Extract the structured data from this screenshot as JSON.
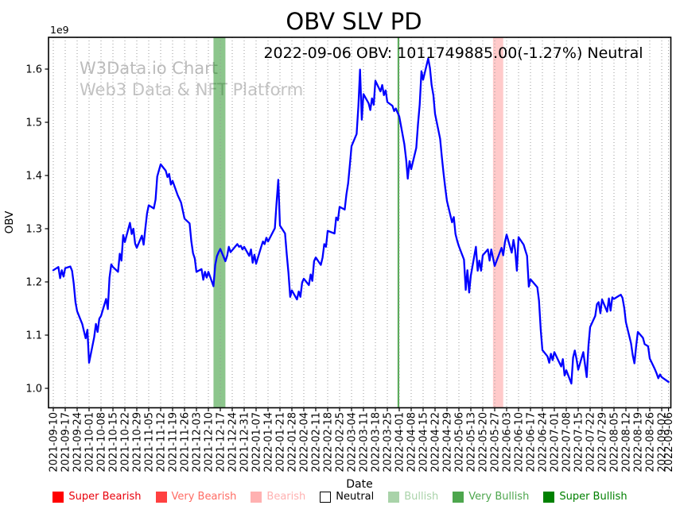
{
  "title": "OBV SLV PD",
  "subtitle": "2022-09-06 OBV: 1011749885.00(-1.27%) Neutral",
  "header": {
    "date": "2022-09-06",
    "obv_value": "1011749885.00",
    "change_pct": "-1.27%",
    "signal": "Neutral"
  },
  "watermark": {
    "line1": "W3Data.io Chart",
    "line2": "Web3 Data & NFT Platform",
    "color": "#bcbcbc"
  },
  "axes": {
    "ylabel": "OBV",
    "xlabel": "Date",
    "y_multiplier": "1e9",
    "yticks": [
      1.0,
      1.1,
      1.2,
      1.3,
      1.4,
      1.5,
      1.6
    ],
    "ylim": [
      0.963,
      1.66
    ],
    "grid": "vertical-dotted",
    "xtick_labels": [
      "2021-09-10",
      "2021-09-17",
      "2021-09-24",
      "2021-10-01",
      "2021-10-08",
      "2021-10-15",
      "2021-10-22",
      "2021-10-29",
      "2021-11-05",
      "2021-11-12",
      "2021-11-19",
      "2021-11-26",
      "2021-12-03",
      "2021-12-10",
      "2021-12-17",
      "2021-12-24",
      "2021-12-31",
      "2022-01-07",
      "2022-01-14",
      "2022-01-21",
      "2022-01-28",
      "2022-02-04",
      "2022-02-11",
      "2022-02-18",
      "2022-02-25",
      "2022-03-04",
      "2022-03-11",
      "2022-03-18",
      "2022-03-25",
      "2022-04-01",
      "2022-04-08",
      "2022-04-15",
      "2022-04-22",
      "2022-04-29",
      "2022-05-06",
      "2022-05-13",
      "2022-05-20",
      "2022-05-27",
      "2022-06-03",
      "2022-06-10",
      "2022-06-17",
      "2022-06-24",
      "2022-07-01",
      "2022-07-08",
      "2022-07-15",
      "2022-07-22",
      "2022-07-29",
      "2022-08-05",
      "2022-08-12",
      "2022-08-19",
      "2022-08-26",
      "2022-09-02",
      "2022-09-06"
    ]
  },
  "legend": {
    "position": "bottom-center",
    "items": [
      {
        "label": "Super Bearish",
        "swatch": "#ff0000",
        "edge": "#ff0000",
        "text_color": "#e8000b"
      },
      {
        "label": "Very Bearish",
        "swatch": "#ff4040",
        "edge": "#ff4040",
        "text_color": "#ff6b63"
      },
      {
        "label": "Bearish",
        "swatch": "#ffb1b1",
        "edge": "#ffb1b1",
        "text_color": "#ffb1b1"
      },
      {
        "label": "Neutral",
        "swatch": "#ffffff",
        "edge": "#000000",
        "text_color": "#000000"
      },
      {
        "label": "Bullish",
        "swatch": "#a9d3a9",
        "edge": "#a9d3a9",
        "text_color": "#a9d3a9"
      },
      {
        "label": "Very Bullish",
        "swatch": "#4da64d",
        "edge": "#4da64d",
        "text_color": "#4da64d"
      },
      {
        "label": "Super Bullish",
        "swatch": "#008000",
        "edge": "#008000",
        "text_color": "#008000"
      }
    ]
  },
  "chart_data": {
    "type": "line",
    "title": "OBV SLV PD",
    "xlabel": "Date",
    "ylabel": "OBV",
    "line_color": "#0000ff",
    "line_width": 2.3,
    "x_range": [
      "2021-09-10",
      "2022-09-06"
    ],
    "regions": [
      {
        "name": "very-bullish-band",
        "start": "2021-12-13",
        "end": "2021-12-20",
        "color": "rgba(0,128,0,0.45)"
      },
      {
        "name": "very-bullish-line",
        "start": "2022-03-31",
        "end": "2022-04-01",
        "color": "rgba(0,128,0,0.65)"
      },
      {
        "name": "bearish-band",
        "start": "2022-05-26",
        "end": "2022-06-01",
        "color": "rgba(255,80,80,0.30)"
      }
    ],
    "points": [
      [
        "2021-09-10",
        1.222
      ],
      [
        "2021-09-13",
        1.228
      ],
      [
        "2021-09-14",
        1.207
      ],
      [
        "2021-09-15",
        1.222
      ],
      [
        "2021-09-16",
        1.21
      ],
      [
        "2021-09-17",
        1.226
      ],
      [
        "2021-09-20",
        1.229
      ],
      [
        "2021-09-21",
        1.221
      ],
      [
        "2021-09-22",
        1.197
      ],
      [
        "2021-09-23",
        1.162
      ],
      [
        "2021-09-24",
        1.145
      ],
      [
        "2021-09-27",
        1.121
      ],
      [
        "2021-09-28",
        1.107
      ],
      [
        "2021-09-29",
        1.094
      ],
      [
        "2021-09-30",
        1.11
      ],
      [
        "2021-10-01",
        1.048
      ],
      [
        "2021-10-04",
        1.096
      ],
      [
        "2021-10-05",
        1.121
      ],
      [
        "2021-10-06",
        1.106
      ],
      [
        "2021-10-07",
        1.131
      ],
      [
        "2021-10-08",
        1.136
      ],
      [
        "2021-10-11",
        1.168
      ],
      [
        "2021-10-12",
        1.149
      ],
      [
        "2021-10-13",
        1.208
      ],
      [
        "2021-10-14",
        1.233
      ],
      [
        "2021-10-15",
        1.228
      ],
      [
        "2021-10-18",
        1.219
      ],
      [
        "2021-10-19",
        1.253
      ],
      [
        "2021-10-20",
        1.24
      ],
      [
        "2021-10-21",
        1.288
      ],
      [
        "2021-10-22",
        1.275
      ],
      [
        "2021-10-25",
        1.311
      ],
      [
        "2021-10-26",
        1.29
      ],
      [
        "2021-10-27",
        1.3
      ],
      [
        "2021-10-28",
        1.272
      ],
      [
        "2021-10-29",
        1.264
      ],
      [
        "2021-11-01",
        1.287
      ],
      [
        "2021-11-02",
        1.27
      ],
      [
        "2021-11-03",
        1.3
      ],
      [
        "2021-11-04",
        1.329
      ],
      [
        "2021-11-05",
        1.344
      ],
      [
        "2021-11-08",
        1.338
      ],
      [
        "2021-11-09",
        1.355
      ],
      [
        "2021-11-10",
        1.398
      ],
      [
        "2021-11-11",
        1.41
      ],
      [
        "2021-11-12",
        1.421
      ],
      [
        "2021-11-15",
        1.409
      ],
      [
        "2021-11-16",
        1.397
      ],
      [
        "2021-11-17",
        1.403
      ],
      [
        "2021-11-18",
        1.383
      ],
      [
        "2021-11-19",
        1.39
      ],
      [
        "2021-11-22",
        1.363
      ],
      [
        "2021-11-23",
        1.356
      ],
      [
        "2021-11-24",
        1.349
      ],
      [
        "2021-11-26",
        1.319
      ],
      [
        "2021-11-29",
        1.31
      ],
      [
        "2021-11-30",
        1.276
      ],
      [
        "2021-12-01",
        1.254
      ],
      [
        "2021-12-02",
        1.244
      ],
      [
        "2021-12-03",
        1.219
      ],
      [
        "2021-12-06",
        1.224
      ],
      [
        "2021-12-07",
        1.204
      ],
      [
        "2021-12-08",
        1.219
      ],
      [
        "2021-12-09",
        1.208
      ],
      [
        "2021-12-10",
        1.219
      ],
      [
        "2021-12-13",
        1.192
      ],
      [
        "2021-12-14",
        1.232
      ],
      [
        "2021-12-15",
        1.248
      ],
      [
        "2021-12-16",
        1.256
      ],
      [
        "2021-12-17",
        1.262
      ],
      [
        "2021-12-20",
        1.239
      ],
      [
        "2021-12-21",
        1.249
      ],
      [
        "2021-12-22",
        1.266
      ],
      [
        "2021-12-23",
        1.256
      ],
      [
        "2021-12-27",
        1.271
      ],
      [
        "2021-12-28",
        1.266
      ],
      [
        "2021-12-29",
        1.268
      ],
      [
        "2021-12-30",
        1.261
      ],
      [
        "2021-12-31",
        1.266
      ],
      [
        "2022-01-03",
        1.249
      ],
      [
        "2022-01-04",
        1.261
      ],
      [
        "2022-01-05",
        1.236
      ],
      [
        "2022-01-06",
        1.251
      ],
      [
        "2022-01-07",
        1.234
      ],
      [
        "2022-01-10",
        1.266
      ],
      [
        "2022-01-11",
        1.276
      ],
      [
        "2022-01-12",
        1.271
      ],
      [
        "2022-01-13",
        1.283
      ],
      [
        "2022-01-14",
        1.276
      ],
      [
        "2022-01-18",
        1.301
      ],
      [
        "2022-01-19",
        1.348
      ],
      [
        "2022-01-20",
        1.392
      ],
      [
        "2022-01-21",
        1.306
      ],
      [
        "2022-01-24",
        1.291
      ],
      [
        "2022-01-25",
        1.251
      ],
      [
        "2022-01-26",
        1.217
      ],
      [
        "2022-01-27",
        1.172
      ],
      [
        "2022-01-28",
        1.184
      ],
      [
        "2022-01-31",
        1.167
      ],
      [
        "2022-02-01",
        1.182
      ],
      [
        "2022-02-02",
        1.172
      ],
      [
        "2022-02-03",
        1.199
      ],
      [
        "2022-02-04",
        1.206
      ],
      [
        "2022-02-07",
        1.194
      ],
      [
        "2022-02-08",
        1.214
      ],
      [
        "2022-02-09",
        1.202
      ],
      [
        "2022-02-10",
        1.239
      ],
      [
        "2022-02-11",
        1.246
      ],
      [
        "2022-02-14",
        1.232
      ],
      [
        "2022-02-15",
        1.246
      ],
      [
        "2022-02-16",
        1.271
      ],
      [
        "2022-02-17",
        1.266
      ],
      [
        "2022-02-18",
        1.296
      ],
      [
        "2022-02-22",
        1.291
      ],
      [
        "2022-02-23",
        1.321
      ],
      [
        "2022-02-24",
        1.316
      ],
      [
        "2022-02-25",
        1.341
      ],
      [
        "2022-02-28",
        1.336
      ],
      [
        "2022-03-01",
        1.365
      ],
      [
        "2022-03-02",
        1.385
      ],
      [
        "2022-03-03",
        1.42
      ],
      [
        "2022-03-04",
        1.455
      ],
      [
        "2022-03-07",
        1.478
      ],
      [
        "2022-03-08",
        1.53
      ],
      [
        "2022-03-09",
        1.599
      ],
      [
        "2022-03-10",
        1.505
      ],
      [
        "2022-03-11",
        1.553
      ],
      [
        "2022-03-14",
        1.536
      ],
      [
        "2022-03-15",
        1.523
      ],
      [
        "2022-03-16",
        1.545
      ],
      [
        "2022-03-17",
        1.533
      ],
      [
        "2022-03-18",
        1.578
      ],
      [
        "2022-03-21",
        1.558
      ],
      [
        "2022-03-22",
        1.57
      ],
      [
        "2022-03-23",
        1.551
      ],
      [
        "2022-03-24",
        1.56
      ],
      [
        "2022-03-25",
        1.538
      ],
      [
        "2022-03-28",
        1.531
      ],
      [
        "2022-03-29",
        1.521
      ],
      [
        "2022-03-30",
        1.526
      ],
      [
        "2022-03-31",
        1.518
      ],
      [
        "2022-04-01",
        1.511
      ],
      [
        "2022-04-04",
        1.459
      ],
      [
        "2022-04-05",
        1.431
      ],
      [
        "2022-04-06",
        1.394
      ],
      [
        "2022-04-07",
        1.427
      ],
      [
        "2022-04-08",
        1.412
      ],
      [
        "2022-04-11",
        1.452
      ],
      [
        "2022-04-12",
        1.497
      ],
      [
        "2022-04-13",
        1.533
      ],
      [
        "2022-04-14",
        1.596
      ],
      [
        "2022-04-15",
        1.58
      ],
      [
        "2022-04-18",
        1.62
      ],
      [
        "2022-04-19",
        1.602
      ],
      [
        "2022-04-20",
        1.57
      ],
      [
        "2022-04-21",
        1.551
      ],
      [
        "2022-04-22",
        1.516
      ],
      [
        "2022-04-25",
        1.469
      ],
      [
        "2022-04-26",
        1.434
      ],
      [
        "2022-04-27",
        1.404
      ],
      [
        "2022-04-28",
        1.376
      ],
      [
        "2022-04-29",
        1.352
      ],
      [
        "2022-05-02",
        1.312
      ],
      [
        "2022-05-03",
        1.322
      ],
      [
        "2022-05-04",
        1.29
      ],
      [
        "2022-05-05",
        1.277
      ],
      [
        "2022-05-06",
        1.267
      ],
      [
        "2022-05-09",
        1.242
      ],
      [
        "2022-05-10",
        1.185
      ],
      [
        "2022-05-11",
        1.222
      ],
      [
        "2022-05-12",
        1.18
      ],
      [
        "2022-05-13",
        1.212
      ],
      [
        "2022-05-16",
        1.266
      ],
      [
        "2022-05-17",
        1.221
      ],
      [
        "2022-05-18",
        1.24
      ],
      [
        "2022-05-19",
        1.221
      ],
      [
        "2022-05-20",
        1.25
      ],
      [
        "2022-05-23",
        1.261
      ],
      [
        "2022-05-24",
        1.24
      ],
      [
        "2022-05-25",
        1.261
      ],
      [
        "2022-05-26",
        1.245
      ],
      [
        "2022-05-27",
        1.23
      ],
      [
        "2022-05-31",
        1.264
      ],
      [
        "2022-06-01",
        1.25
      ],
      [
        "2022-06-02",
        1.275
      ],
      [
        "2022-06-03",
        1.289
      ],
      [
        "2022-06-06",
        1.255
      ],
      [
        "2022-06-07",
        1.279
      ],
      [
        "2022-06-08",
        1.26
      ],
      [
        "2022-06-09",
        1.221
      ],
      [
        "2022-06-10",
        1.284
      ],
      [
        "2022-06-13",
        1.27
      ],
      [
        "2022-06-14",
        1.259
      ],
      [
        "2022-06-15",
        1.249
      ],
      [
        "2022-06-16",
        1.191
      ],
      [
        "2022-06-17",
        1.205
      ],
      [
        "2022-06-21",
        1.19
      ],
      [
        "2022-06-22",
        1.165
      ],
      [
        "2022-06-23",
        1.11
      ],
      [
        "2022-06-24",
        1.072
      ],
      [
        "2022-06-27",
        1.06
      ],
      [
        "2022-06-28",
        1.048
      ],
      [
        "2022-06-29",
        1.065
      ],
      [
        "2022-06-30",
        1.053
      ],
      [
        "2022-07-01",
        1.068
      ],
      [
        "2022-07-05",
        1.041
      ],
      [
        "2022-07-06",
        1.055
      ],
      [
        "2022-07-07",
        1.024
      ],
      [
        "2022-07-08",
        1.034
      ],
      [
        "2022-07-11",
        1.009
      ],
      [
        "2022-07-12",
        1.058
      ],
      [
        "2022-07-13",
        1.071
      ],
      [
        "2022-07-14",
        1.055
      ],
      [
        "2022-07-15",
        1.035
      ],
      [
        "2022-07-18",
        1.068
      ],
      [
        "2022-07-19",
        1.044
      ],
      [
        "2022-07-20",
        1.021
      ],
      [
        "2022-07-21",
        1.08
      ],
      [
        "2022-07-22",
        1.115
      ],
      [
        "2022-07-25",
        1.136
      ],
      [
        "2022-07-26",
        1.158
      ],
      [
        "2022-07-27",
        1.162
      ],
      [
        "2022-07-28",
        1.141
      ],
      [
        "2022-07-29",
        1.167
      ],
      [
        "2022-08-01",
        1.144
      ],
      [
        "2022-08-02",
        1.169
      ],
      [
        "2022-08-03",
        1.146
      ],
      [
        "2022-08-04",
        1.171
      ],
      [
        "2022-08-05",
        1.168
      ],
      [
        "2022-08-08",
        1.174
      ],
      [
        "2022-08-09",
        1.176
      ],
      [
        "2022-08-10",
        1.17
      ],
      [
        "2022-08-11",
        1.151
      ],
      [
        "2022-08-12",
        1.124
      ],
      [
        "2022-08-15",
        1.085
      ],
      [
        "2022-08-16",
        1.062
      ],
      [
        "2022-08-17",
        1.047
      ],
      [
        "2022-08-18",
        1.08
      ],
      [
        "2022-08-19",
        1.106
      ],
      [
        "2022-08-22",
        1.095
      ],
      [
        "2022-08-23",
        1.083
      ],
      [
        "2022-08-24",
        1.081
      ],
      [
        "2022-08-25",
        1.079
      ],
      [
        "2022-08-26",
        1.056
      ],
      [
        "2022-08-29",
        1.036
      ],
      [
        "2022-08-30",
        1.028
      ],
      [
        "2022-08-31",
        1.019
      ],
      [
        "2022-09-01",
        1.026
      ],
      [
        "2022-09-02",
        1.021
      ],
      [
        "2022-09-06",
        1.012
      ]
    ]
  }
}
